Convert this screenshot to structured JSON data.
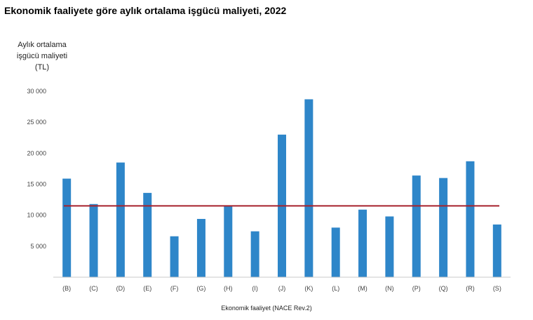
{
  "chart_data": {
    "type": "bar",
    "title": "Ekonomik faaliyete göre aylık ortalama işgücü maliyeti, 2022",
    "ylabel_lines": [
      "Aylık ortalama",
      "işgücü maliyeti",
      "(TL)"
    ],
    "xlabel": "Ekonomik faaliyet (NACE Rev.2)",
    "categories": [
      "(B)",
      "(C)",
      "(D)",
      "(E)",
      "(F)",
      "(G)",
      "(H)",
      "(I)",
      "(J)",
      "(K)",
      "(L)",
      "(M)",
      "(N)",
      "(P)",
      "(Q)",
      "(R)",
      "(S)"
    ],
    "values": [
      15900,
      11800,
      18500,
      13600,
      6600,
      9400,
      11500,
      7400,
      23000,
      28700,
      8000,
      10900,
      9800,
      16400,
      16000,
      18700,
      8500
    ],
    "ylim": [
      0,
      30000
    ],
    "yticks": [
      5000,
      10000,
      15000,
      20000,
      25000,
      30000
    ],
    "ytick_labels": [
      "5 000",
      "10 000",
      "15 000",
      "20 000",
      "25 000",
      "30 000"
    ],
    "reference_line": 11500,
    "grid": false,
    "colors": {
      "bar": "#2e86c9",
      "reference_line": "#a6222c",
      "axis": "#c8c8c8"
    }
  }
}
